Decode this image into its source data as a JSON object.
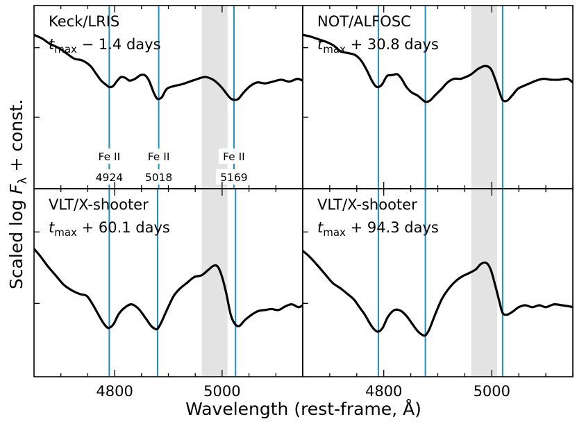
{
  "chart_data": {
    "type": "line",
    "layout": "2x2 grid, shared x-axis, y tick labels hidden",
    "xlabel": "Wavelength (rest-frame, Å)",
    "ylabel": "Scaled log Fλ + const.",
    "ylabel_parts": {
      "main": "Scaled log ",
      "var": "F",
      "sub": "λ",
      "rest": " + const."
    },
    "xlim": [
      4650,
      5150
    ],
    "xticks": [
      4800,
      5000
    ],
    "ylim": [
      0,
      1
    ],
    "shaded_band": {
      "x0": 4962,
      "x1": 5010,
      "color": "#e3e3e3"
    },
    "line_color": "#1f8fc2",
    "spectrum_color": "#000000",
    "feature_lines": [
      {
        "wavelength": 4924,
        "ion": "Fe II",
        "label": "4924"
      },
      {
        "wavelength": 5018,
        "ion": "Fe II",
        "label": "5018"
      },
      {
        "wavelength": 5169,
        "ion": "Fe II",
        "label": "5169"
      }
    ],
    "panels": [
      {
        "instrument": "Keck/LRIS",
        "phase": {
          "sign": "−",
          "value": "1.4 days"
        },
        "feature_positions_x": [
          4790,
          4882,
          5022
        ],
        "spectrum": [
          [
            4650,
            0.84
          ],
          [
            4665,
            0.82
          ],
          [
            4680,
            0.79
          ],
          [
            4695,
            0.77
          ],
          [
            4710,
            0.74
          ],
          [
            4725,
            0.71
          ],
          [
            4740,
            0.7
          ],
          [
            4755,
            0.67
          ],
          [
            4765,
            0.63
          ],
          [
            4775,
            0.59
          ],
          [
            4783,
            0.57
          ],
          [
            4790,
            0.555
          ],
          [
            4797,
            0.56
          ],
          [
            4805,
            0.59
          ],
          [
            4812,
            0.61
          ],
          [
            4820,
            0.605
          ],
          [
            4828,
            0.59
          ],
          [
            4838,
            0.6
          ],
          [
            4848,
            0.62
          ],
          [
            4856,
            0.62
          ],
          [
            4864,
            0.59
          ],
          [
            4872,
            0.53
          ],
          [
            4878,
            0.495
          ],
          [
            4882,
            0.49
          ],
          [
            4888,
            0.5
          ],
          [
            4897,
            0.545
          ],
          [
            4910,
            0.56
          ],
          [
            4925,
            0.57
          ],
          [
            4940,
            0.585
          ],
          [
            4955,
            0.6
          ],
          [
            4968,
            0.61
          ],
          [
            4980,
            0.6
          ],
          [
            4990,
            0.58
          ],
          [
            5000,
            0.55
          ],
          [
            5008,
            0.52
          ],
          [
            5015,
            0.495
          ],
          [
            5022,
            0.485
          ],
          [
            5030,
            0.49
          ],
          [
            5040,
            0.525
          ],
          [
            5052,
            0.56
          ],
          [
            5065,
            0.58
          ],
          [
            5080,
            0.575
          ],
          [
            5095,
            0.585
          ],
          [
            5110,
            0.595
          ],
          [
            5125,
            0.585
          ],
          [
            5140,
            0.6
          ],
          [
            5150,
            0.59
          ]
        ]
      },
      {
        "instrument": "NOT/ALFOSC",
        "phase": {
          "sign": "+",
          "value": "30.8 days"
        },
        "feature_positions_x": [
          4790,
          4877,
          5020
        ],
        "spectrum": [
          [
            4650,
            0.84
          ],
          [
            4665,
            0.83
          ],
          [
            4680,
            0.815
          ],
          [
            4695,
            0.8
          ],
          [
            4708,
            0.78
          ],
          [
            4720,
            0.75
          ],
          [
            4735,
            0.74
          ],
          [
            4747,
            0.73
          ],
          [
            4758,
            0.7
          ],
          [
            4768,
            0.65
          ],
          [
            4778,
            0.59
          ],
          [
            4785,
            0.56
          ],
          [
            4790,
            0.555
          ],
          [
            4797,
            0.57
          ],
          [
            4806,
            0.615
          ],
          [
            4815,
            0.62
          ],
          [
            4825,
            0.625
          ],
          [
            4833,
            0.6
          ],
          [
            4842,
            0.555
          ],
          [
            4852,
            0.525
          ],
          [
            4862,
            0.51
          ],
          [
            4870,
            0.49
          ],
          [
            4877,
            0.475
          ],
          [
            4885,
            0.48
          ],
          [
            4895,
            0.51
          ],
          [
            4907,
            0.545
          ],
          [
            4918,
            0.58
          ],
          [
            4930,
            0.6
          ],
          [
            4942,
            0.6
          ],
          [
            4952,
            0.61
          ],
          [
            4962,
            0.625
          ],
          [
            4975,
            0.655
          ],
          [
            4988,
            0.67
          ],
          [
            4998,
            0.655
          ],
          [
            5006,
            0.6
          ],
          [
            5014,
            0.53
          ],
          [
            5020,
            0.485
          ],
          [
            5028,
            0.48
          ],
          [
            5038,
            0.51
          ],
          [
            5048,
            0.545
          ],
          [
            5058,
            0.56
          ],
          [
            5070,
            0.575
          ],
          [
            5082,
            0.59
          ],
          [
            5095,
            0.6
          ],
          [
            5110,
            0.595
          ],
          [
            5125,
            0.595
          ],
          [
            5140,
            0.6
          ],
          [
            5150,
            0.58
          ]
        ]
      },
      {
        "instrument": "VLT/X-shooter",
        "phase": {
          "sign": "+",
          "value": "60.1 days"
        },
        "feature_positions_x": [
          4790,
          4880,
          5025
        ],
        "spectrum": [
          [
            4650,
            0.68
          ],
          [
            4662,
            0.64
          ],
          [
            4675,
            0.59
          ],
          [
            4690,
            0.54
          ],
          [
            4705,
            0.49
          ],
          [
            4720,
            0.46
          ],
          [
            4735,
            0.44
          ],
          [
            4748,
            0.43
          ],
          [
            4758,
            0.39
          ],
          [
            4768,
            0.34
          ],
          [
            4778,
            0.29
          ],
          [
            4785,
            0.265
          ],
          [
            4790,
            0.26
          ],
          [
            4798,
            0.28
          ],
          [
            4808,
            0.335
          ],
          [
            4820,
            0.37
          ],
          [
            4832,
            0.385
          ],
          [
            4845,
            0.36
          ],
          [
            4858,
            0.31
          ],
          [
            4868,
            0.27
          ],
          [
            4875,
            0.255
          ],
          [
            4880,
            0.255
          ],
          [
            4887,
            0.29
          ],
          [
            4898,
            0.36
          ],
          [
            4910,
            0.43
          ],
          [
            4922,
            0.47
          ],
          [
            4935,
            0.5
          ],
          [
            4948,
            0.53
          ],
          [
            4962,
            0.54
          ],
          [
            4975,
            0.57
          ],
          [
            4984,
            0.59
          ],
          [
            4992,
            0.585
          ],
          [
            5000,
            0.53
          ],
          [
            5008,
            0.44
          ],
          [
            5016,
            0.33
          ],
          [
            5024,
            0.28
          ],
          [
            5032,
            0.27
          ],
          [
            5042,
            0.3
          ],
          [
            5055,
            0.33
          ],
          [
            5068,
            0.35
          ],
          [
            5080,
            0.355
          ],
          [
            5092,
            0.36
          ],
          [
            5105,
            0.355
          ],
          [
            5118,
            0.375
          ],
          [
            5130,
            0.385
          ],
          [
            5142,
            0.37
          ],
          [
            5150,
            0.38
          ]
        ]
      },
      {
        "instrument": "VLT/X-shooter",
        "phase": {
          "sign": "+",
          "value": "94.3 days"
        },
        "feature_positions_x": [
          4790,
          4877,
          5020
        ],
        "spectrum": [
          [
            4650,
            0.67
          ],
          [
            4662,
            0.64
          ],
          [
            4675,
            0.6
          ],
          [
            4690,
            0.55
          ],
          [
            4705,
            0.5
          ],
          [
            4720,
            0.47
          ],
          [
            4733,
            0.44
          ],
          [
            4745,
            0.41
          ],
          [
            4755,
            0.37
          ],
          [
            4765,
            0.33
          ],
          [
            4775,
            0.28
          ],
          [
            4783,
            0.25
          ],
          [
            4790,
            0.24
          ],
          [
            4798,
            0.26
          ],
          [
            4808,
            0.32
          ],
          [
            4820,
            0.355
          ],
          [
            4832,
            0.35
          ],
          [
            4843,
            0.32
          ],
          [
            4853,
            0.28
          ],
          [
            4862,
            0.245
          ],
          [
            4870,
            0.225
          ],
          [
            4877,
            0.22
          ],
          [
            4884,
            0.25
          ],
          [
            4895,
            0.33
          ],
          [
            4907,
            0.41
          ],
          [
            4918,
            0.46
          ],
          [
            4930,
            0.5
          ],
          [
            4943,
            0.53
          ],
          [
            4957,
            0.55
          ],
          [
            4970,
            0.57
          ],
          [
            4980,
            0.6
          ],
          [
            4990,
            0.605
          ],
          [
            4998,
            0.57
          ],
          [
            5006,
            0.49
          ],
          [
            5014,
            0.4
          ],
          [
            5020,
            0.34
          ],
          [
            5028,
            0.33
          ],
          [
            5038,
            0.345
          ],
          [
            5050,
            0.37
          ],
          [
            5062,
            0.38
          ],
          [
            5075,
            0.37
          ],
          [
            5088,
            0.38
          ],
          [
            5100,
            0.37
          ],
          [
            5115,
            0.385
          ],
          [
            5130,
            0.38
          ],
          [
            5142,
            0.375
          ],
          [
            5150,
            0.37
          ]
        ]
      }
    ]
  }
}
